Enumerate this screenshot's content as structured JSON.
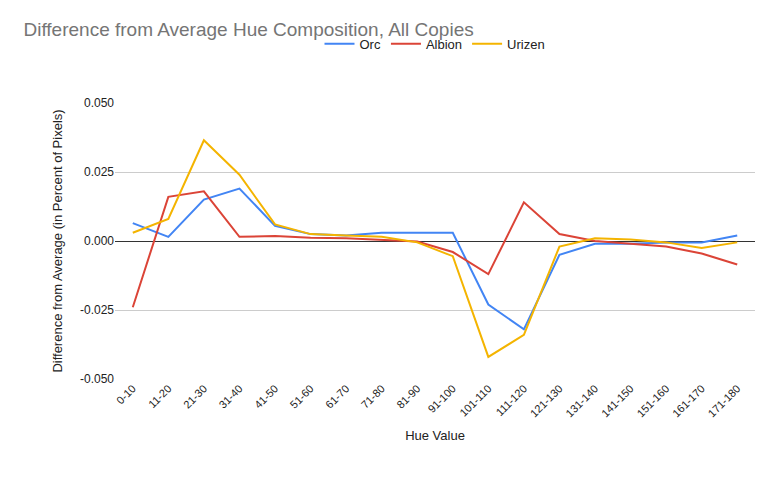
{
  "chart_data": {
    "type": "line",
    "title": "Difference from Average Hue Composition, All Copies",
    "x_label": "Hue Value",
    "y_label": "Difference from Average (in Percent of Pixels)",
    "categories": [
      "0-10",
      "11-20",
      "21-30",
      "31-40",
      "41-50",
      "51-60",
      "61-70",
      "71-80",
      "81-90",
      "91-100",
      "101-110",
      "111-120",
      "121-130",
      "131-140",
      "141-150",
      "151-160",
      "161-170",
      "171-180"
    ],
    "series": [
      {
        "name": "Orc",
        "color": "#4285f4",
        "values": [
          0.0065,
          0.0015,
          0.015,
          0.019,
          0.0055,
          0.0025,
          0.002,
          0.003,
          0.003,
          0.003,
          -0.023,
          -0.032,
          -0.005,
          -0.001,
          -0.001,
          -0.0005,
          -0.0005,
          0.002
        ]
      },
      {
        "name": "Albion",
        "color": "#db4437",
        "values": [
          -0.024,
          0.016,
          0.018,
          0.0015,
          0.0018,
          0.0012,
          0.001,
          0.0005,
          -0.0002,
          -0.004,
          -0.012,
          0.014,
          0.0025,
          0,
          -0.001,
          -0.002,
          -0.0045,
          -0.0085
        ]
      },
      {
        "name": "Urizen",
        "color": "#f4b400",
        "values": [
          0.003,
          0.008,
          0.0365,
          0.024,
          0.006,
          0.0025,
          0.002,
          0.0015,
          -0.0005,
          -0.0055,
          -0.042,
          -0.034,
          -0.002,
          0.001,
          0.0005,
          -0.0005,
          -0.0025,
          -0.0005
        ]
      }
    ],
    "ylim": [
      -0.05,
      0.05
    ],
    "yticks": [
      {
        "value": -0.05,
        "label": "-0.050"
      },
      {
        "value": -0.025,
        "label": "-0.025"
      },
      {
        "value": 0,
        "label": "0.000"
      },
      {
        "value": 0.025,
        "label": "0.025"
      },
      {
        "value": 0.05,
        "label": "0.050"
      }
    ],
    "grid": true,
    "legend": "top"
  }
}
